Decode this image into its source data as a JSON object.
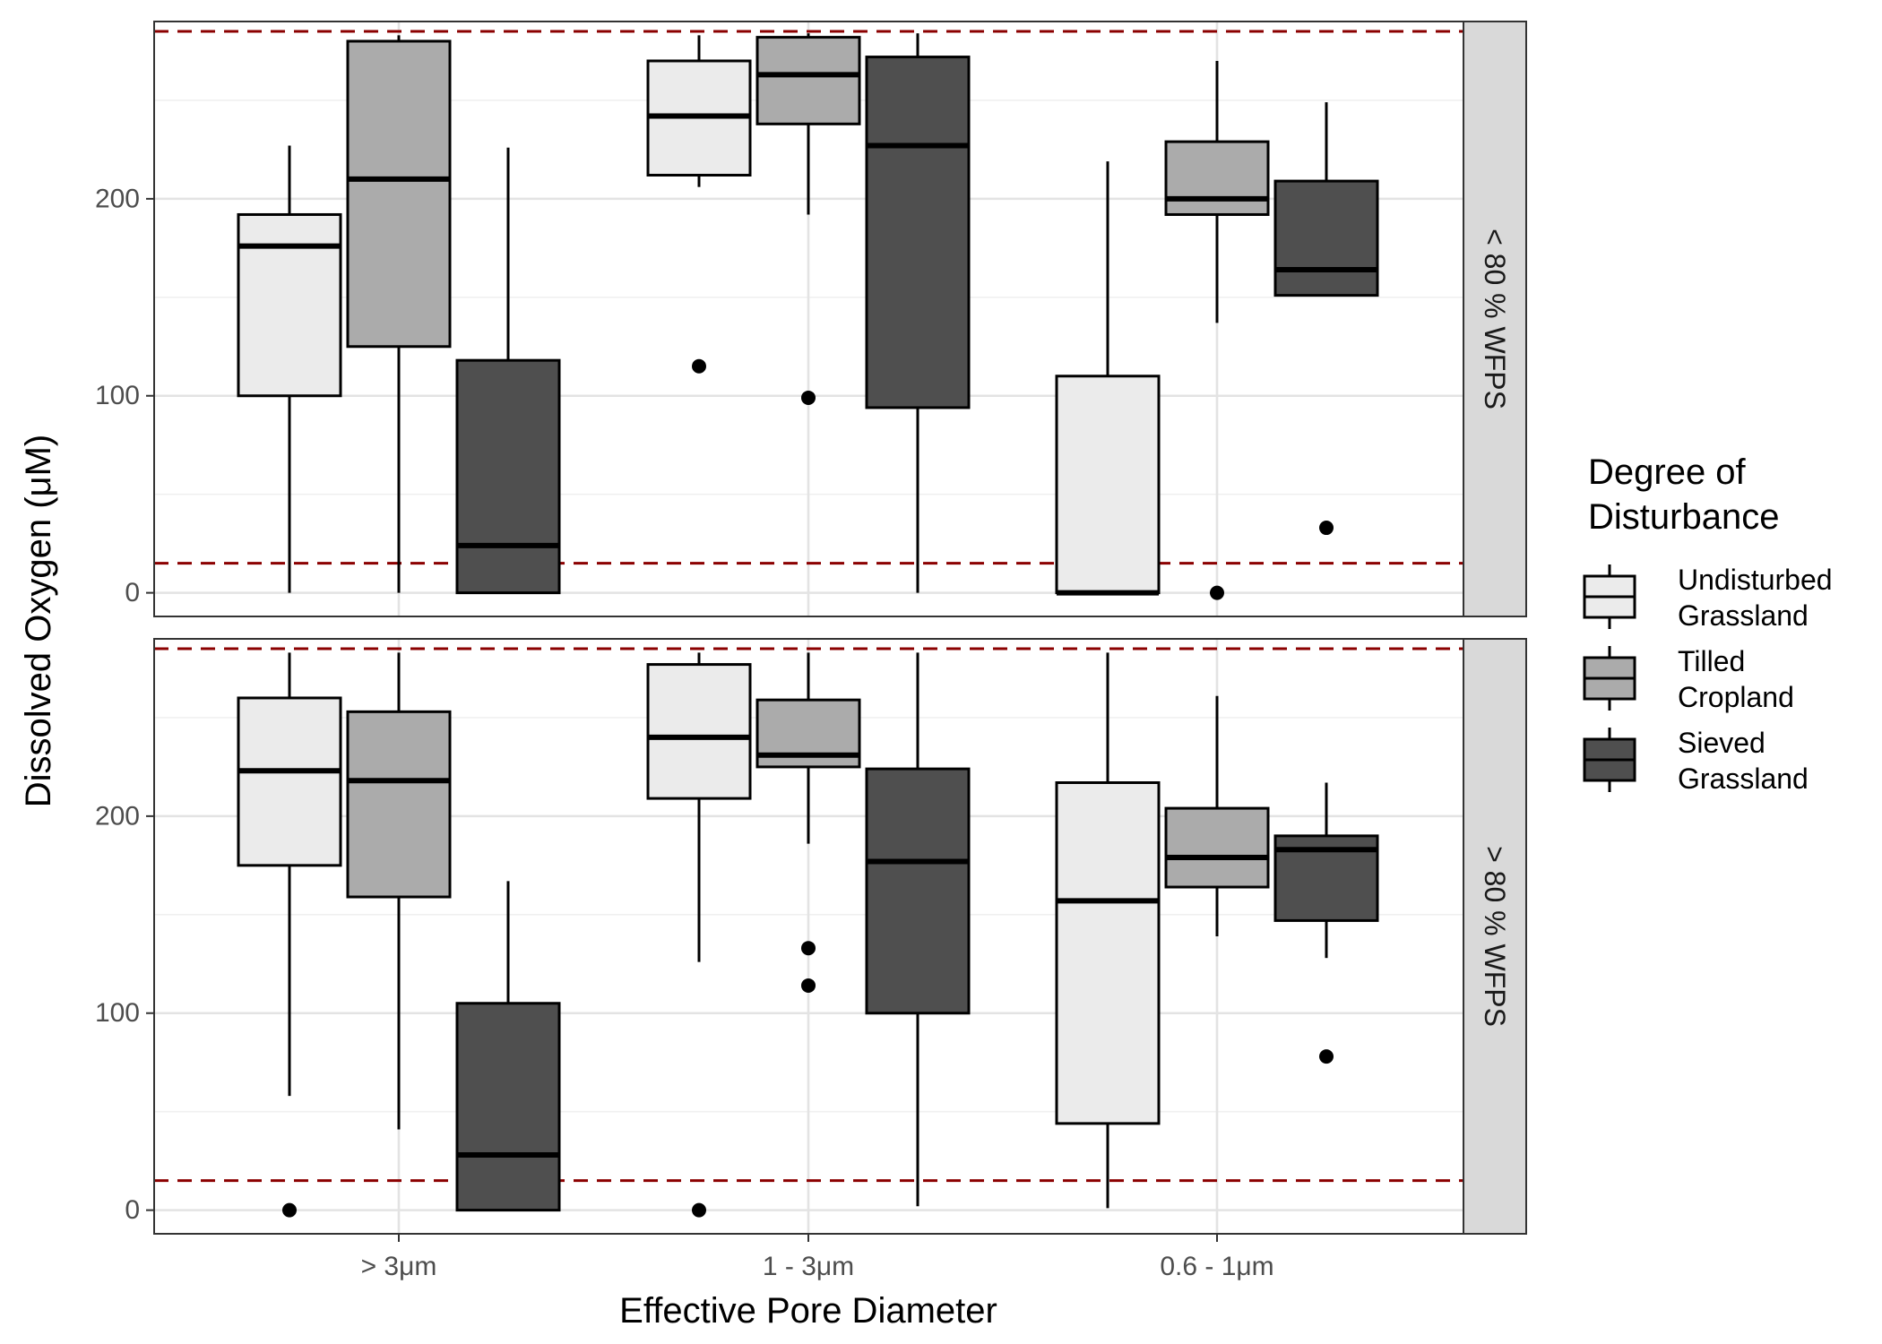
{
  "chart_data": {
    "type": "boxplot",
    "xlabel": "Effective Pore Diameter",
    "ylabel": "Dissolved Oxygen (μM)",
    "categories": [
      "> 3μm",
      "1 - 3μm",
      "0.6 - 1μm"
    ],
    "ylim": [
      -12,
      290
    ],
    "yticks": [
      0,
      100,
      200
    ],
    "reference_lines": [
      285,
      15
    ],
    "reference_line_color": "#8b0000",
    "grid": true,
    "legend": {
      "title_lines": [
        "Degree of",
        "Disturbance"
      ],
      "placement": "right",
      "items": [
        {
          "label_lines": [
            "Undisturbed",
            "Grassland"
          ],
          "color": "#ebebeb"
        },
        {
          "label_lines": [
            "Tilled",
            "Cropland"
          ],
          "color": "#ababab"
        },
        {
          "label_lines": [
            "Sieved",
            "Grassland"
          ],
          "color": "#4f4f4f"
        }
      ]
    },
    "panels": [
      {
        "strip_label": "< 80 % WFPS",
        "boxes": [
          {
            "category": "> 3μm",
            "group": "Undisturbed Grassland",
            "min": 0,
            "q1": 100,
            "median": 176,
            "q3": 192,
            "max": 227,
            "outliers": []
          },
          {
            "category": "> 3μm",
            "group": "Tilled Cropland",
            "min": 0,
            "q1": 125,
            "median": 210,
            "q3": 280,
            "max": 283,
            "outliers": []
          },
          {
            "category": "> 3μm",
            "group": "Sieved Grassland",
            "min": 0,
            "q1": 0,
            "median": 24,
            "q3": 118,
            "max": 226,
            "outliers": []
          },
          {
            "category": "1 - 3μm",
            "group": "Undisturbed Grassland",
            "min": 206,
            "q1": 212,
            "median": 242,
            "q3": 270,
            "max": 283,
            "outliers": [
              115
            ]
          },
          {
            "category": "1 - 3μm",
            "group": "Tilled Cropland",
            "min": 192,
            "q1": 238,
            "median": 263,
            "q3": 282,
            "max": 284,
            "outliers": [
              99
            ]
          },
          {
            "category": "1 - 3μm",
            "group": "Sieved Grassland",
            "min": 0,
            "q1": 94,
            "median": 227,
            "q3": 272,
            "max": 284,
            "outliers": []
          },
          {
            "category": "0.6 - 1μm",
            "group": "Undisturbed Grassland",
            "min": 0,
            "q1": 0,
            "median": 0,
            "q3": 110,
            "max": 219,
            "outliers": []
          },
          {
            "category": "0.6 - 1μm",
            "group": "Tilled Cropland",
            "min": 137,
            "q1": 192,
            "median": 200,
            "q3": 229,
            "max": 270,
            "outliers": [
              0
            ]
          },
          {
            "category": "0.6 - 1μm",
            "group": "Sieved Grassland",
            "min": 151,
            "q1": 151,
            "median": 164,
            "q3": 209,
            "max": 249,
            "outliers": [
              33
            ]
          }
        ]
      },
      {
        "strip_label": "> 80 % WFPS",
        "boxes": [
          {
            "category": "> 3μm",
            "group": "Undisturbed Grassland",
            "min": 58,
            "q1": 175,
            "median": 223,
            "q3": 260,
            "max": 283,
            "outliers": [
              0
            ]
          },
          {
            "category": "> 3μm",
            "group": "Tilled Cropland",
            "min": 41,
            "q1": 159,
            "median": 218,
            "q3": 253,
            "max": 283,
            "outliers": []
          },
          {
            "category": "> 3μm",
            "group": "Sieved Grassland",
            "min": 0,
            "q1": 0,
            "median": 28,
            "q3": 105,
            "max": 167,
            "outliers": []
          },
          {
            "category": "1 - 3μm",
            "group": "Undisturbed Grassland",
            "min": 126,
            "q1": 209,
            "median": 240,
            "q3": 277,
            "max": 283,
            "outliers": [
              0
            ]
          },
          {
            "category": "1 - 3μm",
            "group": "Tilled Cropland",
            "min": 186,
            "q1": 225,
            "median": 231,
            "q3": 259,
            "max": 283,
            "outliers": [
              133,
              114
            ]
          },
          {
            "category": "1 - 3μm",
            "group": "Sieved Grassland",
            "min": 2,
            "q1": 100,
            "median": 177,
            "q3": 224,
            "max": 283,
            "outliers": []
          },
          {
            "category": "0.6 - 1μm",
            "group": "Undisturbed Grassland",
            "min": 1,
            "q1": 44,
            "median": 157,
            "q3": 217,
            "max": 283,
            "outliers": []
          },
          {
            "category": "0.6 - 1μm",
            "group": "Tilled Cropland",
            "min": 139,
            "q1": 164,
            "median": 179,
            "q3": 204,
            "max": 261,
            "outliers": []
          },
          {
            "category": "0.6 - 1μm",
            "group": "Sieved Grassland",
            "min": 128,
            "q1": 147,
            "median": 183,
            "q3": 190,
            "max": 217,
            "outliers": [
              78
            ]
          }
        ]
      }
    ]
  }
}
